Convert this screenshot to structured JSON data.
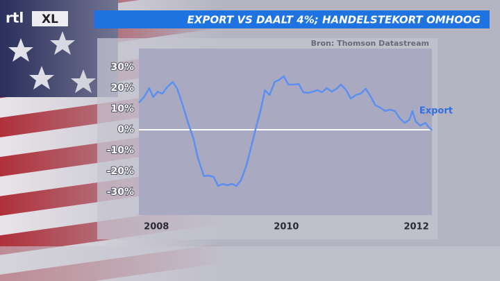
{
  "chart_data": {
    "type": "line",
    "brand": [
      "rtl",
      "XL"
    ],
    "title": "EXPORT VS DAALT 4%; HANDELSTEKORT OMHOOG",
    "source": "Bron: Thomson Datastream",
    "x": [
      2007.73,
      2007.81,
      2007.89,
      2007.95,
      2008.02,
      2008.09,
      2008.16,
      2008.25,
      2008.32,
      2008.4,
      2008.48,
      2008.57,
      2008.64,
      2008.73,
      2008.8,
      2008.88,
      2008.95,
      2009.02,
      2009.09,
      2009.16,
      2009.23,
      2009.3,
      2009.38,
      2009.45,
      2009.53,
      2009.6,
      2009.67,
      2009.74,
      2009.82,
      2009.89,
      2009.96,
      2010.03,
      2010.11,
      2010.19,
      2010.26,
      2010.33,
      2010.41,
      2010.48,
      2010.55,
      2010.62,
      2010.7,
      2010.77,
      2010.84,
      2010.92,
      2010.99,
      2011.07,
      2011.14,
      2011.22,
      2011.29,
      2011.37,
      2011.44,
      2011.52,
      2011.59,
      2011.67,
      2011.74,
      2011.82,
      2011.89,
      2011.94,
      2011.99,
      2012.06,
      2012.14,
      2012.19,
      2012.24
    ],
    "series": [
      {
        "name": "Export",
        "color": "#5b8ff0",
        "values": [
          13,
          15.7,
          20,
          15.7,
          18.3,
          17.3,
          20.3,
          23,
          19.7,
          12.3,
          4,
          -4.3,
          -13.7,
          -22.3,
          -22,
          -22.7,
          -27,
          -26,
          -26.7,
          -26,
          -27,
          -24.3,
          -17.7,
          -9.3,
          0.7,
          9,
          19,
          16.7,
          23,
          24,
          25.7,
          21.7,
          21.7,
          22,
          18,
          17.7,
          18.3,
          19,
          18,
          20,
          18.3,
          19.7,
          21.7,
          19,
          15,
          16.7,
          17.3,
          19.7,
          16.3,
          11.7,
          10.7,
          9,
          9.7,
          9,
          5.7,
          3.3,
          4.7,
          9,
          4,
          2,
          3.3,
          1.3,
          -0.3
        ]
      }
    ],
    "xlim": [
      2007.73,
      2012.24
    ],
    "xticks": [
      2008,
      2010,
      2012
    ],
    "ylim": [
      -41,
      39
    ],
    "yticks": [
      {
        "value": 30,
        "label": "30%"
      },
      {
        "value": 20,
        "label": "20%"
      },
      {
        "value": 10,
        "label": "10%"
      },
      {
        "value": 0,
        "label": "0%"
      },
      {
        "value": -10,
        "label": "-10%"
      },
      {
        "value": -20,
        "label": "-20%"
      },
      {
        "value": -30,
        "label": "-30%"
      }
    ],
    "zero_line": true
  }
}
